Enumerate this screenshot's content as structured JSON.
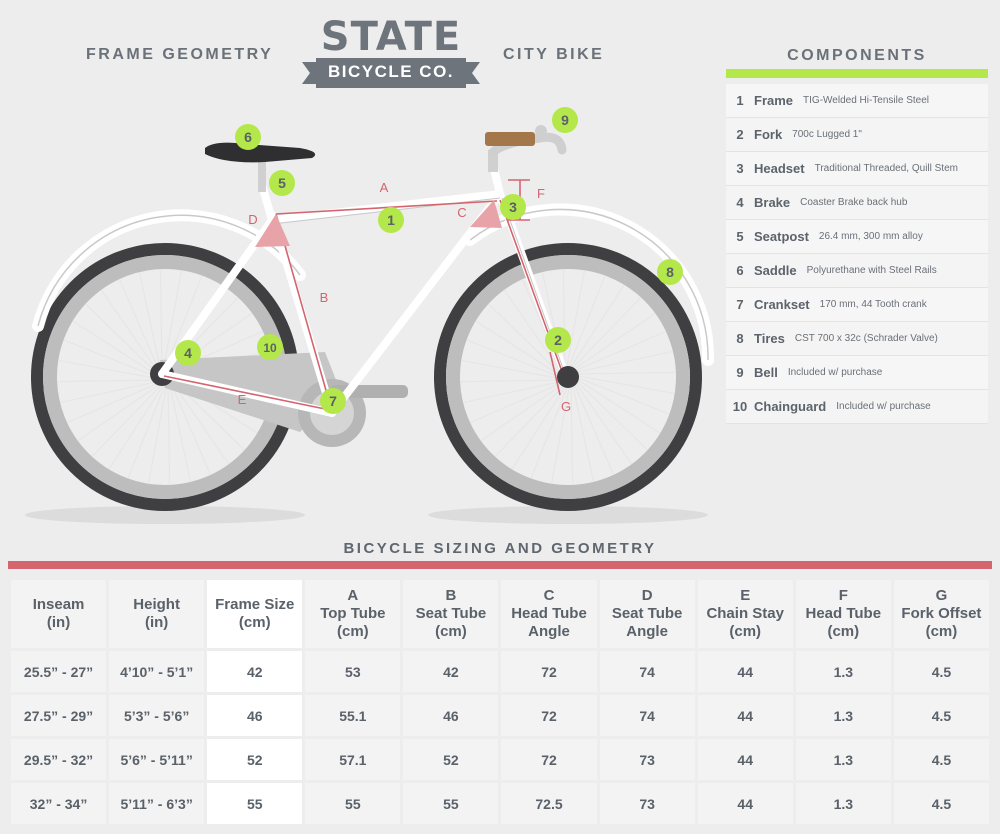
{
  "header": {
    "left_label": "FRAME GEOMETRY",
    "right_label": "CITY BIKE",
    "logo_top": "STATE",
    "logo_bottom": "BICYCLE CO."
  },
  "colors": {
    "accent_green": "#b4e74a",
    "accent_red": "#d4646e",
    "frame": "#ffffff",
    "tire": "#3f3f42",
    "rim": "#bdbdbd",
    "text": "#5a6169"
  },
  "components": {
    "title": "COMPONENTS",
    "items": [
      {
        "num": "1",
        "name": "Frame",
        "desc": "TIG-Welded Hi-Tensile Steel"
      },
      {
        "num": "2",
        "name": "Fork",
        "desc": "700c Lugged 1\""
      },
      {
        "num": "3",
        "name": "Headset",
        "desc": "Traditional Threaded, Quill Stem"
      },
      {
        "num": "4",
        "name": "Brake",
        "desc": "Coaster Brake back hub"
      },
      {
        "num": "5",
        "name": "Seatpost",
        "desc": "26.4 mm, 300 mm alloy"
      },
      {
        "num": "6",
        "name": "Saddle",
        "desc": "Polyurethane with Steel Rails"
      },
      {
        "num": "7",
        "name": "Crankset",
        "desc": "170 mm, 44 Tooth crank"
      },
      {
        "num": "8",
        "name": "Tires",
        "desc": "CST 700 x 32c (Schrader Valve)"
      },
      {
        "num": "9",
        "name": "Bell",
        "desc": "Included w/ purchase"
      },
      {
        "num": "10",
        "name": "Chainguard",
        "desc": "Included w/ purchase"
      }
    ]
  },
  "diagram": {
    "measure_labels": [
      "A",
      "B",
      "C",
      "D",
      "E",
      "F",
      "G"
    ],
    "callouts": [
      "1",
      "2",
      "3",
      "4",
      "5",
      "6",
      "7",
      "8",
      "9",
      "10"
    ]
  },
  "table": {
    "title": "BICYCLE SIZING AND GEOMETRY",
    "headers": [
      [
        "Inseam",
        "(in)"
      ],
      [
        "Height",
        "(in)"
      ],
      [
        "Frame Size",
        "(cm)"
      ],
      [
        "A",
        "Top Tube",
        "(cm)"
      ],
      [
        "B",
        "Seat Tube",
        "(cm)"
      ],
      [
        "C",
        "Head Tube",
        "Angle"
      ],
      [
        "D",
        "Seat Tube",
        "Angle"
      ],
      [
        "E",
        "Chain Stay",
        "(cm)"
      ],
      [
        "F",
        "Head Tube",
        "(cm)"
      ],
      [
        "G",
        "Fork Offset",
        "(cm)"
      ]
    ],
    "rows": [
      [
        "25.5” - 27”",
        "4’10” - 5’1”",
        "42",
        "53",
        "42",
        "72",
        "74",
        "44",
        "1.3",
        "4.5"
      ],
      [
        "27.5” - 29”",
        "5’3” - 5’6”",
        "46",
        "55.1",
        "46",
        "72",
        "74",
        "44",
        "1.3",
        "4.5"
      ],
      [
        "29.5” - 32”",
        "5’6” - 5’11”",
        "52",
        "57.1",
        "52",
        "72",
        "73",
        "44",
        "1.3",
        "4.5"
      ],
      [
        "32” - 34”",
        "5’11” - 6’3”",
        "55",
        "55",
        "55",
        "72.5",
        "73",
        "44",
        "1.3",
        "4.5"
      ]
    ]
  }
}
